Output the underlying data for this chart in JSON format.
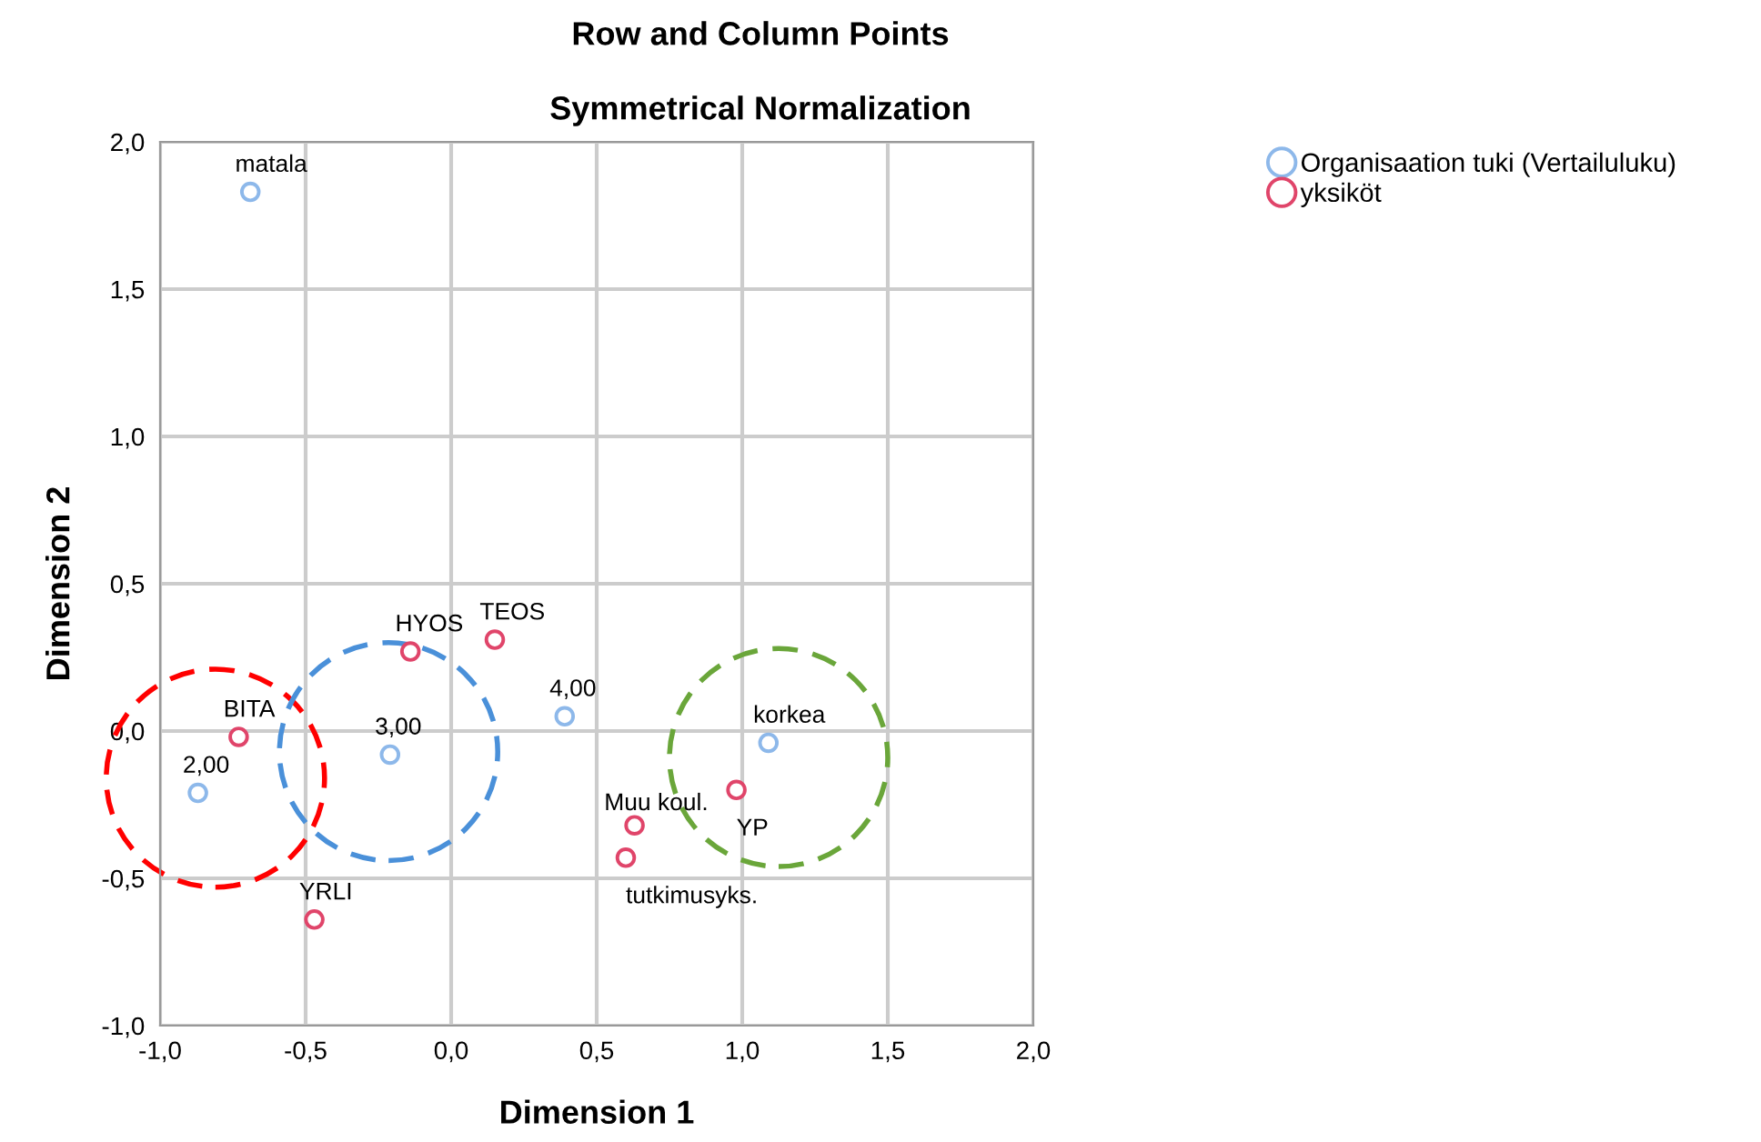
{
  "chart_data": {
    "type": "scatter",
    "title": "Row and Column Points",
    "subtitle": "Symmetrical Normalization",
    "xlabel": "Dimension 1",
    "ylabel": "Dimension 2",
    "xlim": [
      -1.0,
      2.0
    ],
    "ylim": [
      -1.0,
      2.0
    ],
    "xticks": [
      {
        "value": -1.0,
        "label": "-1,0"
      },
      {
        "value": -0.5,
        "label": "-0,5"
      },
      {
        "value": 0.0,
        "label": "0,0"
      },
      {
        "value": 0.5,
        "label": "0,5"
      },
      {
        "value": 1.0,
        "label": "1,0"
      },
      {
        "value": 1.5,
        "label": "1,5"
      },
      {
        "value": 2.0,
        "label": "2,0"
      }
    ],
    "yticks": [
      {
        "value": -1.0,
        "label": "-1,0"
      },
      {
        "value": -0.5,
        "label": "-0,5"
      },
      {
        "value": 0.0,
        "label": "0,0"
      },
      {
        "value": 0.5,
        "label": "0,5"
      },
      {
        "value": 1.0,
        "label": "1,0"
      },
      {
        "value": 1.5,
        "label": "1,5"
      },
      {
        "value": 2.0,
        "label": "2,0"
      }
    ],
    "grid": true,
    "legend": "top right",
    "marker": "circle",
    "series": [
      {
        "name": "Organisaation tuki (Vertailuluku)",
        "color": "#8db8ea",
        "x": [
          -0.69,
          -0.87,
          -0.21,
          0.39,
          1.09
        ],
        "values": [
          1.83,
          -0.21,
          -0.08,
          0.05,
          -0.04
        ]
      },
      {
        "name": "yksiköt",
        "color": "#e0456a",
        "x": [
          -0.73,
          -0.14,
          0.15,
          -0.47,
          0.63,
          0.6,
          0.98
        ],
        "values": [
          -0.02,
          0.27,
          0.31,
          -0.64,
          -0.32,
          -0.43,
          -0.2
        ]
      }
    ],
    "annotations": [
      {
        "text": "matala",
        "x": -0.69,
        "y": 1.83
      },
      {
        "text": "2,00",
        "x": -0.87,
        "y": -0.21
      },
      {
        "text": "3,00",
        "x": -0.21,
        "y": -0.08
      },
      {
        "text": "4,00",
        "x": 0.39,
        "y": 0.05
      },
      {
        "text": "korkea",
        "x": 1.09,
        "y": -0.04
      },
      {
        "text": "BITA",
        "x": -0.73,
        "y": -0.02
      },
      {
        "text": "HYOS",
        "x": -0.14,
        "y": 0.27
      },
      {
        "text": "TEOS",
        "x": 0.15,
        "y": 0.31
      },
      {
        "text": "YRLI",
        "x": -0.47,
        "y": -0.64
      },
      {
        "text": "Muu koul.",
        "x": 0.63,
        "y": -0.32
      },
      {
        "text": "tutkimusyks.",
        "x": 0.6,
        "y": -0.43
      },
      {
        "text": "YP",
        "x": 0.98,
        "y": -0.2
      }
    ]
  }
}
